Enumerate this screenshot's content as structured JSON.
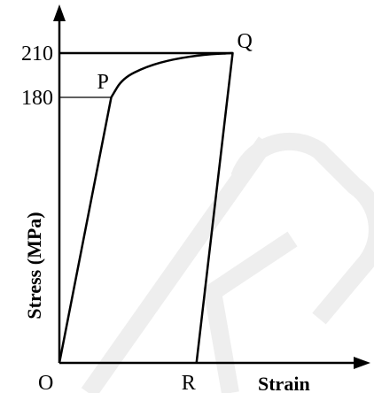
{
  "chart_data": {
    "type": "line",
    "title": "",
    "xlabel": "Strain",
    "ylabel": "Stress (MPa)",
    "ylim": [
      0,
      240
    ],
    "xlim": [
      0,
      1
    ],
    "grid": false,
    "legend": "none",
    "y_ticks": [
      "210",
      "180"
    ],
    "y_tick_values": [
      210,
      180
    ],
    "points": [
      {
        "label": "O",
        "x": 0.0,
        "y": 0
      },
      {
        "label": "P",
        "x": 0.172,
        "y": 180
      },
      {
        "label": "Q",
        "x": 0.575,
        "y": 210
      },
      {
        "label": "R",
        "x": 0.455,
        "y": 0
      }
    ],
    "series": [
      {
        "values": [
          [
            0.0,
            0
          ],
          [
            0.172,
            180
          ],
          [
            0.21,
            193
          ],
          [
            0.29,
            201
          ],
          [
            0.38,
            206
          ],
          [
            0.48,
            209
          ],
          [
            0.575,
            210
          ],
          [
            0.455,
            0
          ]
        ]
      }
    ],
    "colors": {
      "line": "#000000",
      "background": "#ffffff",
      "watermark": "#eeeeee"
    }
  }
}
